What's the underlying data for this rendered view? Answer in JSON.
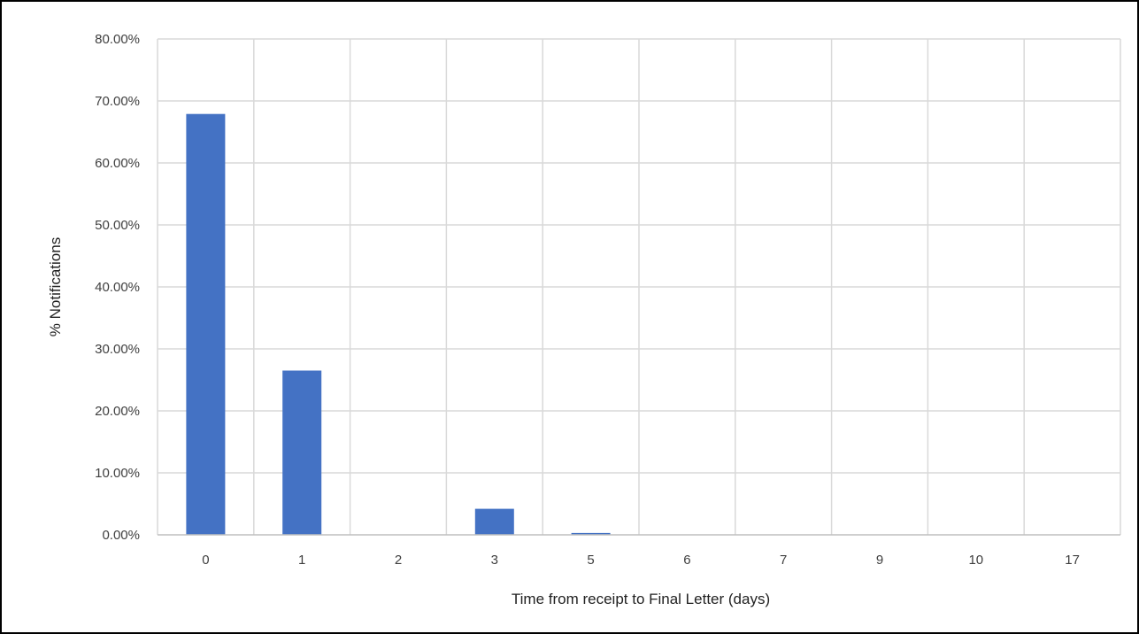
{
  "chart_data": {
    "type": "bar",
    "title": "",
    "xlabel": "Time from receipt to Final Letter (days)",
    "ylabel": "% Notifications",
    "categories": [
      "0",
      "1",
      "2",
      "3",
      "5",
      "6",
      "7",
      "9",
      "10",
      "17"
    ],
    "values": [
      67.9,
      26.5,
      0.0,
      4.2,
      0.3,
      0.0,
      0.0,
      0.0,
      0.0,
      0.0
    ],
    "ylim": [
      0,
      80
    ],
    "yticks": [
      0,
      10,
      20,
      30,
      40,
      50,
      60,
      70,
      80
    ],
    "ytick_labels": [
      "0.00%",
      "10.00%",
      "20.00%",
      "30.00%",
      "40.00%",
      "50.00%",
      "60.00%",
      "70.00%",
      "80.00%"
    ],
    "grid": true,
    "legend": "none",
    "colors": {
      "bar": "#4472C4",
      "grid": "#d9d9d9",
      "axis": "#bfbfbf",
      "border": "#000000"
    }
  }
}
